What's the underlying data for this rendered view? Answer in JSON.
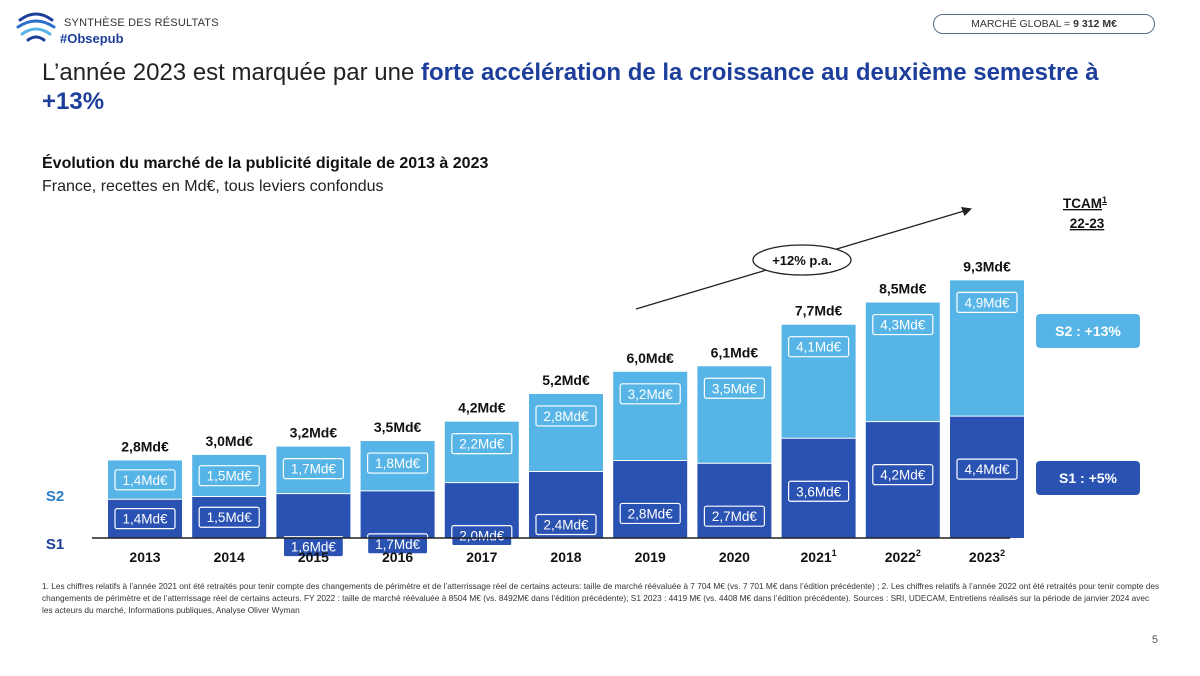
{
  "header": {
    "label": "SYNTHÈSE DES RÉSULTATS",
    "tag": "#Obsepub",
    "market_label": "MARCHÉ GLOBAL = ",
    "market_value": "9 312 M€"
  },
  "headline": {
    "part1": "L’année 2023 est marquée par une ",
    "highlight": "forte accélération de la croissance au deuxième semestre à +13%"
  },
  "subtitle": "Évolution du marché de la publicité digitale de 2013 à 2023",
  "subtitle2": "France, recettes en Md€, tous leviers confondus",
  "chart_data": {
    "type": "bar",
    "stacked": true,
    "title": "Évolution du marché de la publicité digitale de 2013 à 2023",
    "unit": "Md€",
    "categories": [
      "2013",
      "2014",
      "2015",
      "2016",
      "2017",
      "2018",
      "2019",
      "2020",
      "2021",
      "2022",
      "2023"
    ],
    "category_superscripts": [
      "",
      "",
      "",
      "",
      "",
      "",
      "",
      "",
      "1",
      "2",
      "2"
    ],
    "series": [
      {
        "name": "S1",
        "color": "#2a52b3",
        "values": [
          1.4,
          1.5,
          1.6,
          1.7,
          2.0,
          2.4,
          2.8,
          2.7,
          3.6,
          4.2,
          4.4
        ]
      },
      {
        "name": "S2",
        "color": "#56b5e6",
        "values": [
          1.4,
          1.5,
          1.7,
          1.8,
          2.2,
          2.8,
          3.2,
          3.5,
          4.1,
          4.3,
          4.9
        ]
      }
    ],
    "totals": [
      2.8,
      3.0,
      3.2,
      3.5,
      4.2,
      5.2,
      6.0,
      6.1,
      7.7,
      8.5,
      9.3
    ],
    "ylim": [
      0,
      9.3
    ],
    "series_labels": {
      "s2": "S2",
      "s1": "S1"
    },
    "annotation": "+12% p.a.",
    "tcam_label": "TCAM",
    "tcam_sup": "1",
    "tcam_period": "22-23",
    "legend_position": "left"
  },
  "growth": {
    "s2": "S2 : +13%",
    "s1": "S1 : +5%"
  },
  "footnote": "1. Les chiffres relatifs à l’année 2021 ont été retraités pour tenir compte des changements de périmètre et de l’atterrissage réel de certains acteurs: taille de marché réévaluée à 7 704 M€ (vs. 7 701 M€ dans l’édition précédente) ; 2. Les chiffres relatifs à l’année 2022 ont été retraités pour tenir compte des changements de périmètre et de l’atterrissage réel de certains acteurs. FY 2022 : taille de marché réévaluée à  8504 M€ (vs. 8492M€ dans l’édition précédente); S1 2023 : 4419 M€ (vs. 4408 M€ dans l’édition précédente). Sources : SRI, UDECAM, Entretiens réalisés sur la période de janvier 2024 avec les acteurs du marché, Informations publiques, Analyse Oliver Wyman",
  "page_number": "5"
}
